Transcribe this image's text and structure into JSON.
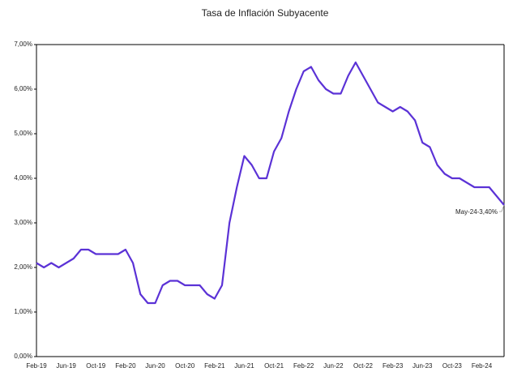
{
  "chart_data": {
    "type": "line",
    "title": "Tasa de Inflación Subyacente",
    "categories": [
      "Feb-19",
      null,
      null,
      null,
      "Jun-19",
      null,
      null,
      null,
      "Oct-19",
      null,
      null,
      null,
      "Feb-20",
      null,
      null,
      null,
      "Jun-20",
      null,
      null,
      null,
      "Oct-20",
      null,
      null,
      null,
      "Feb-21",
      null,
      null,
      null,
      "Jun-21",
      null,
      null,
      null,
      "Oct-21",
      null,
      null,
      null,
      "Feb-22",
      null,
      null,
      null,
      "Jun-22",
      null,
      null,
      null,
      "Oct-22",
      null,
      null,
      null,
      "Feb-23",
      null,
      null,
      null,
      "Jun-23",
      null,
      null,
      null,
      "Oct-23",
      null,
      null,
      null,
      "Feb-24",
      null,
      null,
      null
    ],
    "series": [
      {
        "name": "Tasa de Inflación Subyacente",
        "color": "#5b32d6",
        "values": [
          2.1,
          2.0,
          2.1,
          2.0,
          2.1,
          2.2,
          2.4,
          2.4,
          2.3,
          2.3,
          2.3,
          2.3,
          2.4,
          2.1,
          1.4,
          1.2,
          1.2,
          1.6,
          1.7,
          1.7,
          1.6,
          1.6,
          1.6,
          1.4,
          1.3,
          1.6,
          3.0,
          3.8,
          4.5,
          4.3,
          4.0,
          4.0,
          4.6,
          4.9,
          5.5,
          6.0,
          6.4,
          6.5,
          6.2,
          6.0,
          5.9,
          5.9,
          6.3,
          6.6,
          6.3,
          6.0,
          5.7,
          5.6,
          5.5,
          5.6,
          5.5,
          5.3,
          4.8,
          4.7,
          4.3,
          4.1,
          4.0,
          4.0,
          3.9,
          3.8,
          3.8,
          3.8,
          3.6,
          3.4
        ]
      }
    ],
    "annotation": "May-24-3,40%",
    "ylim": [
      0,
      7
    ],
    "yticks": [
      {
        "value": 0,
        "label": "0,00%"
      },
      {
        "value": 1,
        "label": "1,00%"
      },
      {
        "value": 2,
        "label": "2,00%"
      },
      {
        "value": 3,
        "label": "3,00%"
      },
      {
        "value": 4,
        "label": "4,00%"
      },
      {
        "value": 5,
        "label": "5,00%"
      },
      {
        "value": 6,
        "label": "6,00%"
      },
      {
        "value": 7,
        "label": "7,00%"
      }
    ],
    "grid": false
  }
}
